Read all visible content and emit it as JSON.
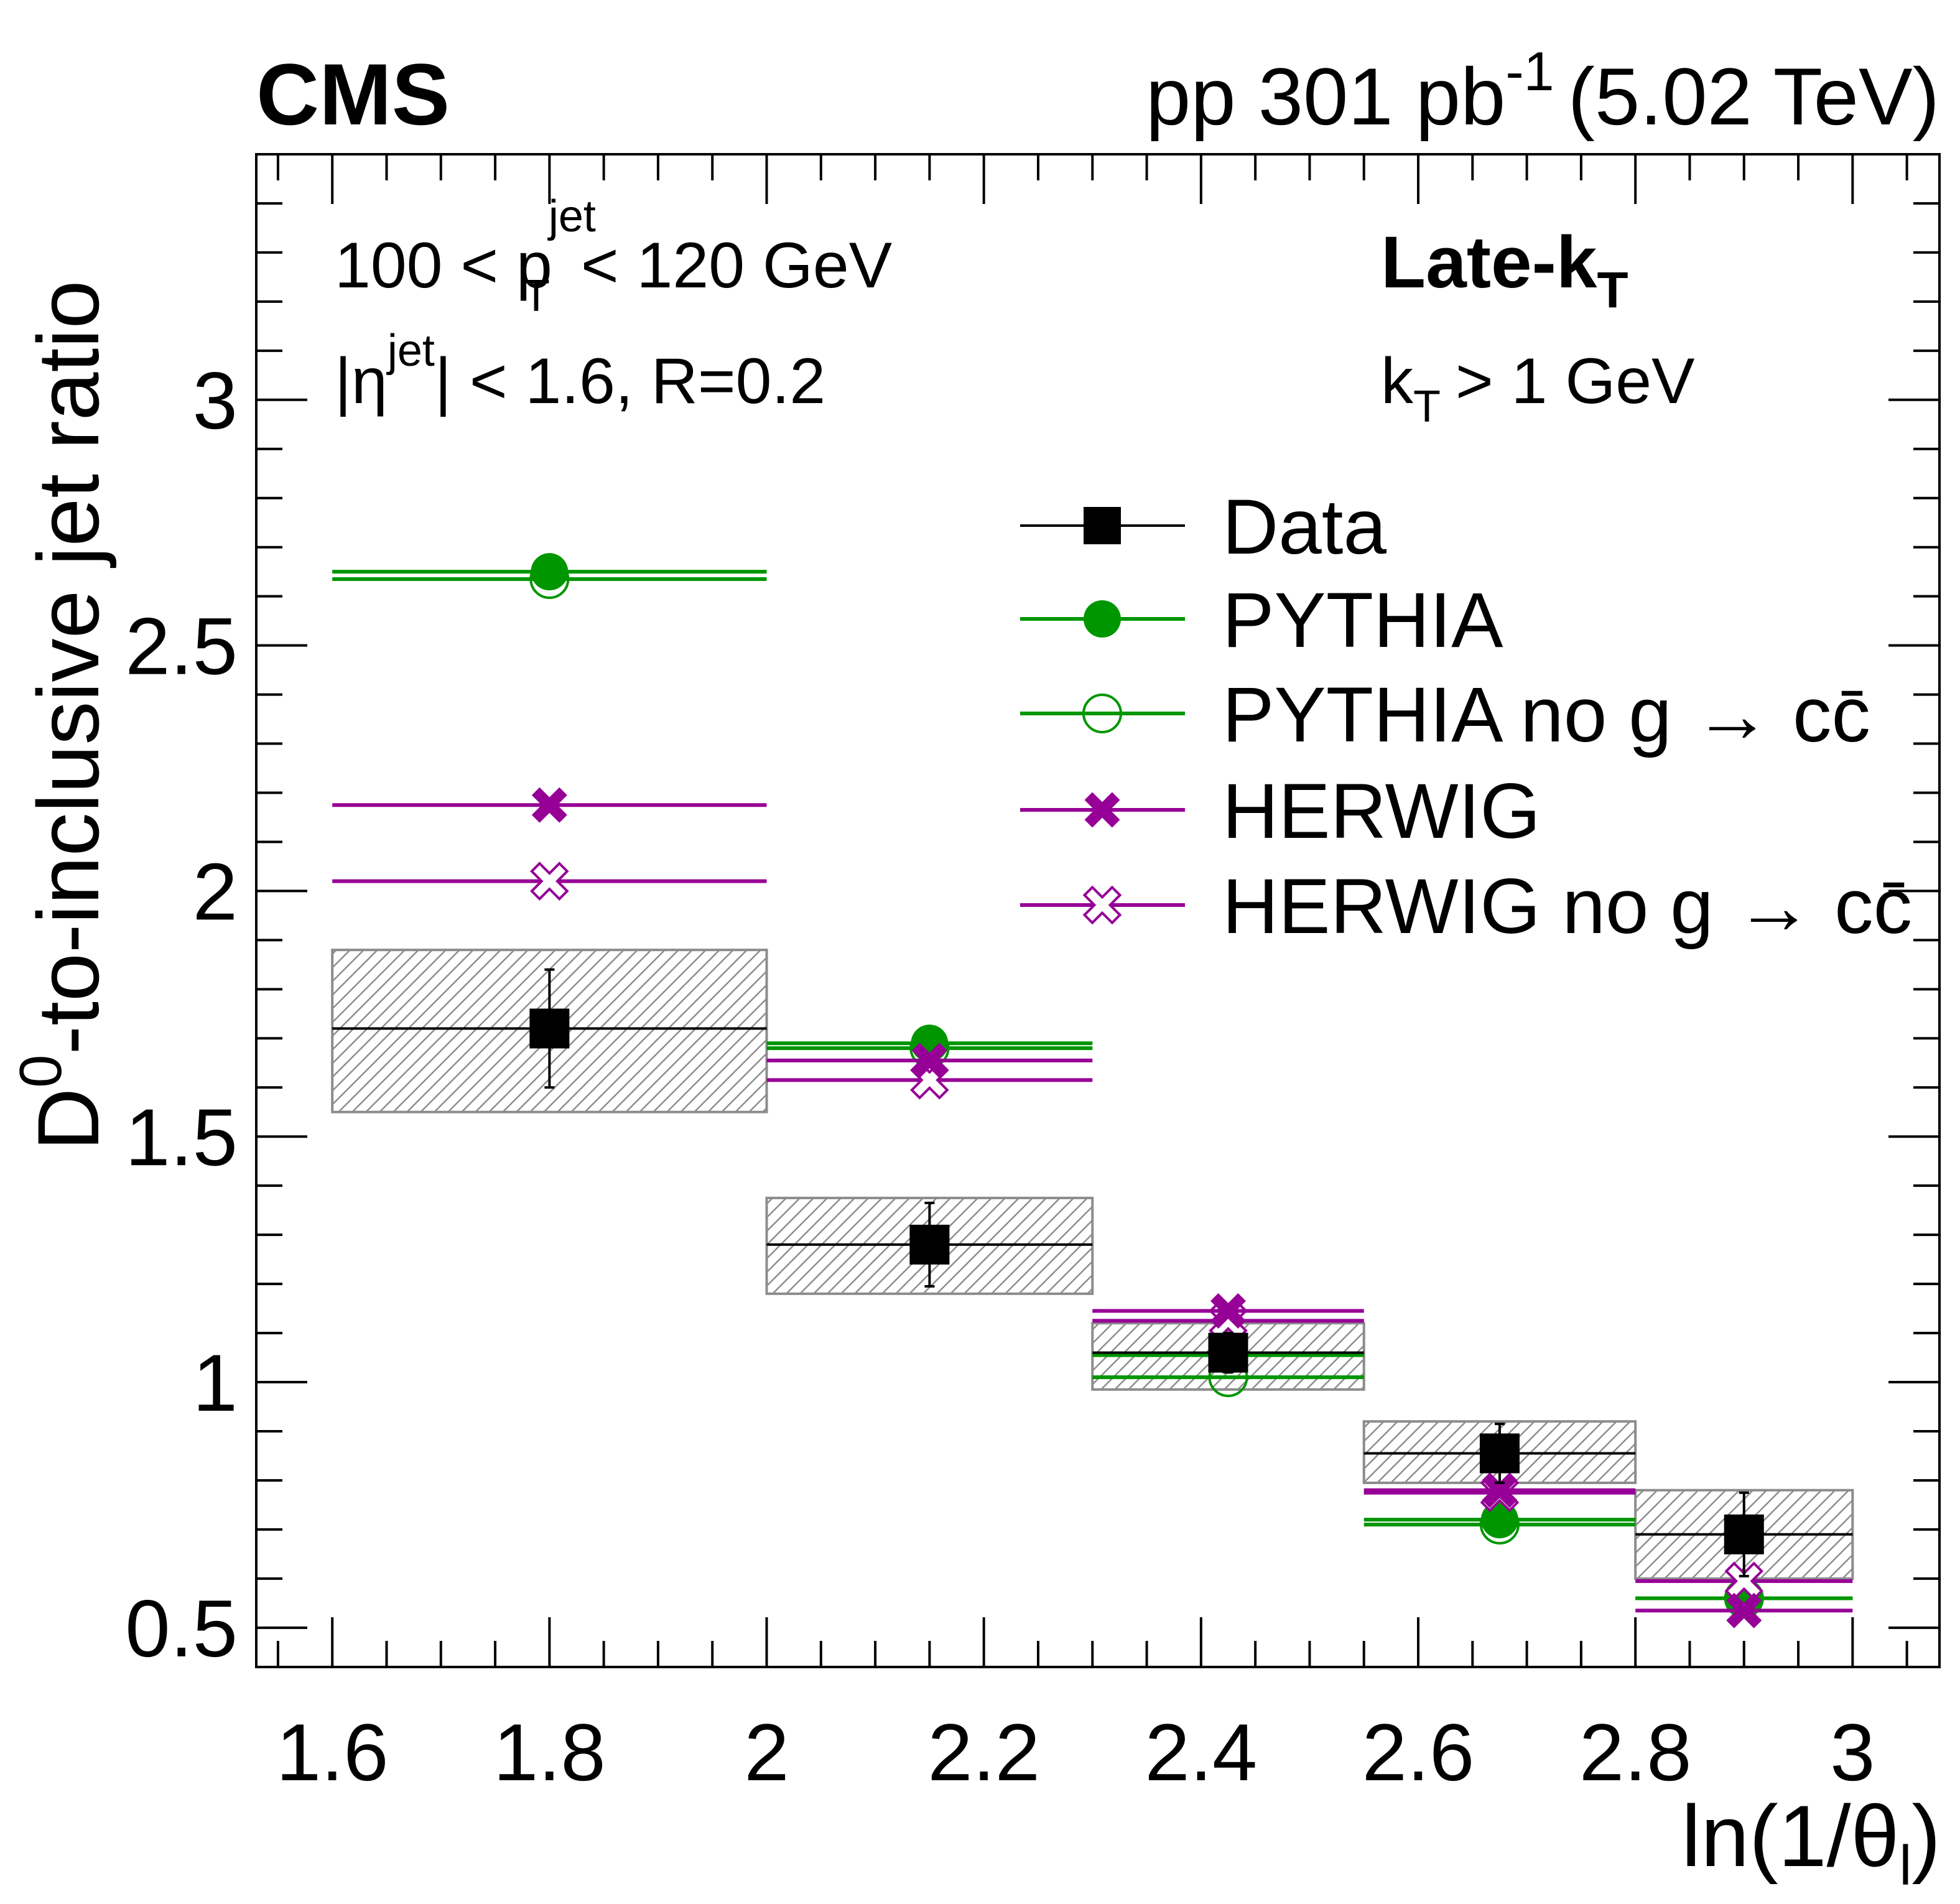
{
  "header": {
    "experiment": "CMS",
    "lumi_prefix": "pp 301 pb",
    "lumi_exponent": "-1",
    "lumi_suffix": "(5.02 TeV)"
  },
  "annotations": {
    "pt_lo": "100 < p",
    "pt_sup": "jet",
    "pt_sub": "T",
    "pt_hi": "< 120 GeV",
    "eta_open": "|η",
    "eta_sup": "jet",
    "eta_rest": "| < 1.6, R=0.2",
    "scheme_main": "Late-k",
    "scheme_sub": "T",
    "kt_main": "k",
    "kt_sub": "T",
    "kt_rest": "> 1 GeV"
  },
  "legend": [
    {
      "key": "data",
      "label": "Data"
    },
    {
      "key": "pythia",
      "label": "PYTHIA"
    },
    {
      "key": "pythia_nog",
      "label": "PYTHIA no g → cc̄"
    },
    {
      "key": "herwig",
      "label": "HERWIG"
    },
    {
      "key": "herwig_nog",
      "label": "HERWIG no g → cc̄"
    }
  ],
  "colors": {
    "data": "#000000",
    "pythia": "#009600",
    "herwig": "#960096",
    "syst_box": "#8c8c8c"
  },
  "chart_data": {
    "type": "scatter",
    "title": "",
    "xlabel": "ln(1/θ",
    "xlabel_sub": "l",
    "xlabel_close": ")",
    "ylabel_main": "D",
    "ylabel_sup": "0",
    "ylabel_rest": "-to-inclusive jet ratio",
    "xlim": [
      1.53,
      3.08
    ],
    "ylim": [
      0.42,
      3.5
    ],
    "x_ticks": [
      1.6,
      1.8,
      2,
      2.2,
      2.4,
      2.6,
      2.8,
      3
    ],
    "x_tick_labels": [
      "1.6",
      "1.8",
      "2",
      "2.2",
      "2.4",
      "2.6",
      "2.8",
      "3"
    ],
    "y_ticks": [
      0.5,
      1,
      1.5,
      2,
      2.5,
      3
    ],
    "y_tick_labels": [
      "0.5",
      "1",
      "1.5",
      "2",
      "2.5",
      "3"
    ],
    "bins": [
      {
        "lo": 1.6,
        "hi": 2.0,
        "center": 1.8
      },
      {
        "lo": 2.0,
        "hi": 2.3,
        "center": 2.15
      },
      {
        "lo": 2.3,
        "hi": 2.55,
        "center": 2.425
      },
      {
        "lo": 2.55,
        "hi": 2.8,
        "center": 2.675
      },
      {
        "lo": 2.8,
        "hi": 3.0,
        "center": 2.9
      }
    ],
    "series": [
      {
        "name": "Data",
        "key": "data",
        "values": [
          1.72,
          1.28,
          1.06,
          0.855,
          0.69
        ],
        "stat_err": [
          0.12,
          0.085,
          0.04,
          0.06,
          0.085
        ],
        "syst_lo": [
          1.55,
          1.18,
          0.985,
          0.795,
          0.6
        ],
        "syst_hi": [
          1.88,
          1.375,
          1.12,
          0.92,
          0.78
        ]
      },
      {
        "name": "PYTHIA",
        "key": "pythia",
        "values": [
          2.65,
          1.69,
          1.055,
          0.72,
          0.56
        ]
      },
      {
        "name": "PYTHIA no g → cc̄",
        "key": "pythia_nog",
        "values": [
          2.635,
          1.68,
          1.01,
          0.71,
          0.56
        ]
      },
      {
        "name": "HERWIG",
        "key": "herwig",
        "values": [
          2.175,
          1.655,
          1.145,
          0.78,
          0.535
        ]
      },
      {
        "name": "HERWIG no g → cc̄",
        "key": "herwig_nog",
        "values": [
          2.02,
          1.615,
          1.125,
          0.775,
          0.595
        ]
      }
    ]
  }
}
